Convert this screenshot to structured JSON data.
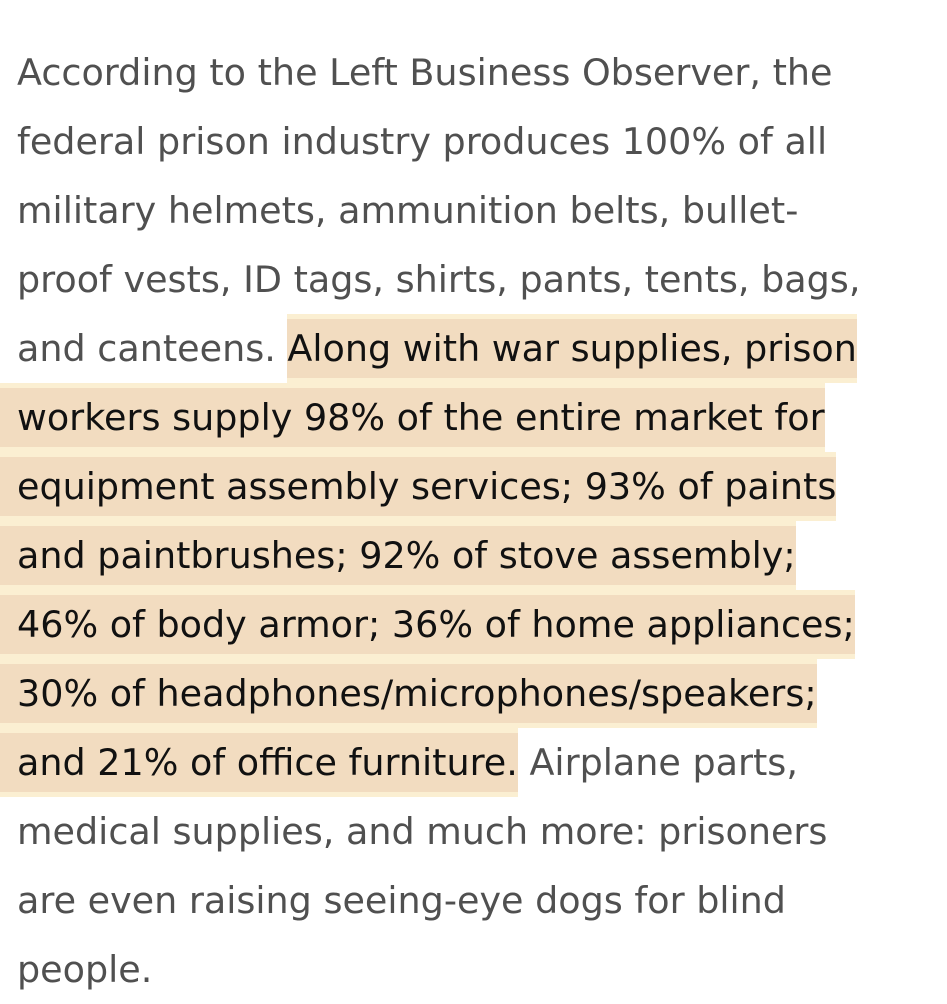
{
  "paragraph": {
    "line1": "According to the Left Business Observer, the",
    "line2": "federal prison industry produces 100% of all",
    "line3": "military helmets, ammunition belts, bullet-",
    "line4": "proof vests, ID tags, shirts, pants, tents, bags,",
    "line5_plain": "and canteens. ",
    "line5_highlight": "Along with war supplies, prison",
    "line6_highlight": "workers supply 98% of the entire market for",
    "line7_highlight": "equipment assembly services; 93% of paints",
    "line8_highlight": "and paintbrushes; 92% of stove assembly;",
    "line9_highlight": "46% of body armor; 36% of home appliances;",
    "line10_highlight": "30% of headphones/microphones/speakers;",
    "line11_highlight": "and 21% of office furniture.",
    "line11_plain": " Airplane parts,",
    "line12": "medical supplies, and much more: prisoners",
    "line13": "are even raising seeing-eye dogs for blind",
    "line14": "people."
  },
  "colors": {
    "text": "#505050",
    "highlight_text": "#111111",
    "highlight_band": "#f2dcc0",
    "highlight_edge": "#fbefd2",
    "background": "#ffffff"
  }
}
